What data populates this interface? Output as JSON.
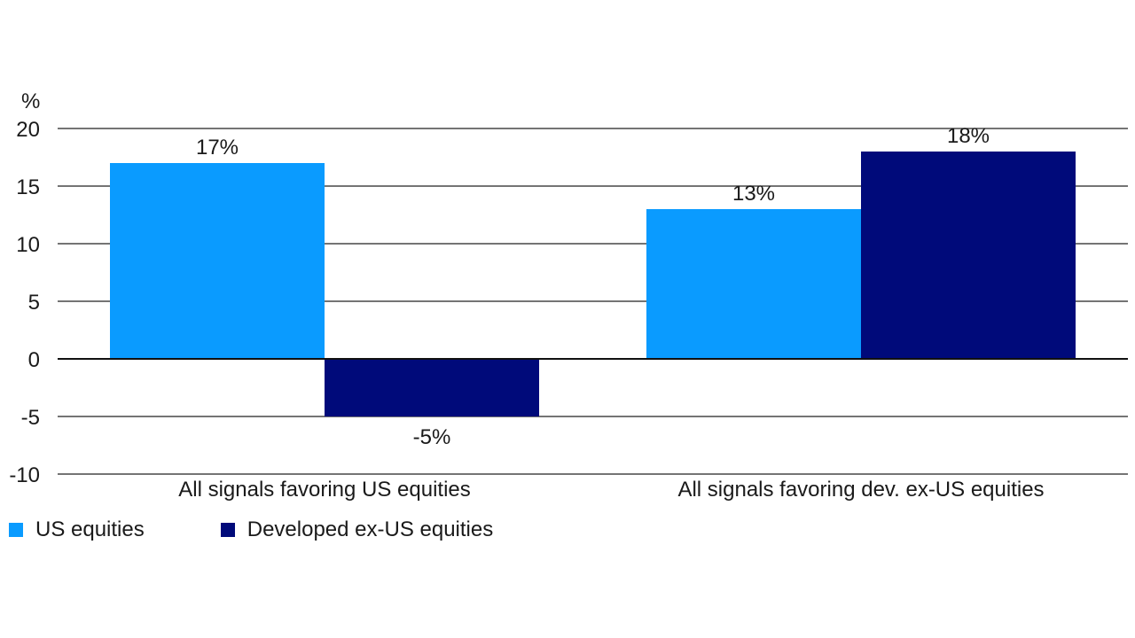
{
  "chart_data": {
    "type": "bar",
    "unit_label": "%",
    "categories": [
      "All signals favoring US equities",
      "All signals favoring dev. ex-US equities"
    ],
    "series": [
      {
        "name": "US equities",
        "color": "#0a9bff",
        "values": [
          17,
          13
        ],
        "labels": [
          "17%",
          "13%"
        ]
      },
      {
        "name": "Developed ex-US equities",
        "color": "#000a7a",
        "values": [
          -5,
          18
        ],
        "labels": [
          "-5%",
          "18%"
        ]
      }
    ],
    "ylim": [
      -10,
      20
    ],
    "yticks": [
      20,
      15,
      10,
      5,
      0,
      -5,
      -10
    ],
    "grid": true,
    "legend_position": "bottom-left"
  }
}
